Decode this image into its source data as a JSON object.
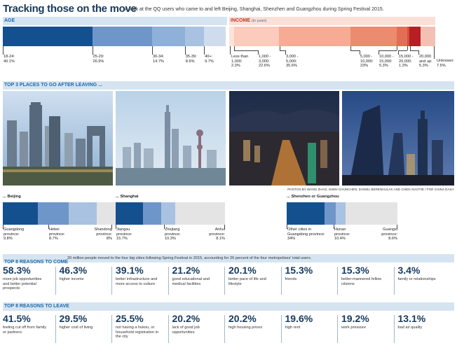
{
  "header": {
    "title": "Tracking those on the move",
    "subtitle": "A look at the QQ users who came to and left Beijing, Shanghai, Shenzhen and Guangzhou during Spring Festival 2015."
  },
  "colors": {
    "navy": "#17395e",
    "blue_dark": "#14508e",
    "blue_mid": "#4c7fba",
    "blue_light": "#8fb0d9",
    "blue_pale": "#d6e4f1",
    "red_dark": "#b01e25",
    "red_mid": "#e07a63",
    "red_light": "#fbd8cd"
  },
  "sections": {
    "age": "AGE",
    "income": "INCOME",
    "income_unit": "(in yuan)",
    "top3": "TOP 3 PLACES TO GO AFTER LEAVING ...",
    "reasons_come": "TOP 8 REASONS TO COME",
    "reasons_come_note": "20 million people moved to the four big cities following Spring Festival in 2015, accounting for 26 percent of the four metropolises' total users.",
    "reasons_leave": "TOP 8 REASONS TO LEAVE"
  },
  "photo_credit": "PHOTOS BY WANG ZHAO, SHEN CHUNCHEN, DANIEL BERENHULAK AND CHEN XIAOTIE / FOR CHINA DAILY",
  "photos": [
    "beijing-skyline-photo",
    "shanghai-skyline-photo",
    "shenzhen-night-photo",
    "guangzhou-night-photo"
  ],
  "chart_data": [
    {
      "type": "bar",
      "title": "AGE",
      "orientation": "stacked-horizontal",
      "categories": [
        "18-24:",
        "25-29:",
        "30-34:",
        "35-39:",
        "40+:"
      ],
      "values": [
        40.1,
        26.9,
        14.7,
        8.6,
        9.7
      ],
      "value_labels": [
        "40.1%",
        "26.9%",
        "14.7%",
        "8.6%",
        "9.7%"
      ],
      "unit": "%"
    },
    {
      "type": "bar",
      "title": "INCOME",
      "subtitle": "(in yuan)",
      "orientation": "stacked-horizontal",
      "categories": [
        "Less than 1,000:",
        "1,000 - 3,000:",
        "3,000 - 5,000:",
        "5,000 - 10,000:",
        "10,000 - 15,000:",
        "15,000 - 20,000:",
        "20,000 and up:",
        "Unknown:"
      ],
      "values": [
        2.3,
        22.6,
        35.6,
        23.0,
        5.3,
        1.3,
        5.3,
        7.5
      ],
      "value_labels": [
        "2.3%",
        "22.6%",
        "35.6%",
        "23%",
        "5.3%",
        "1.3%",
        "5.3%",
        "7.5%"
      ],
      "unit": "%"
    },
    {
      "type": "bar",
      "title": "... Beijing",
      "orientation": "stacked-horizontal",
      "categories": [
        "Guangdong province:",
        "Hebei province:",
        "Shandong province:"
      ],
      "values": [
        9.8,
        8.7,
        8.0
      ],
      "value_labels": [
        "9.8%",
        "8.7%",
        "8%"
      ],
      "unit": "%"
    },
    {
      "type": "bar",
      "title": "... Shanghai",
      "orientation": "stacked-horizontal",
      "categories": [
        "Jiangsu province:",
        "Zhejiang province:",
        "Anhui province:"
      ],
      "values": [
        15.7,
        10.3,
        8.1
      ],
      "value_labels": [
        "15.7%",
        "10.3%",
        "8.1%"
      ],
      "unit": "%"
    },
    {
      "type": "bar",
      "title": "... Shenzhen or Guangzhou",
      "orientation": "stacked-horizontal",
      "categories": [
        "Other cities in Guangdong province:",
        "Hunan province:",
        "Guangxi province:"
      ],
      "values": [
        34.0,
        10.4,
        8.6
      ],
      "value_labels": [
        "34%",
        "10.4%",
        "8.6%"
      ],
      "unit": "%"
    },
    {
      "type": "table",
      "title": "TOP 8 REASONS TO COME",
      "categories": [
        "more job opportunities and better potential prospects",
        "higher income",
        "better infrastructure and more access to culture",
        "good educational and medical facilities",
        "better pace of life and lifestyle",
        "friends",
        "better-mannered fellow citizens",
        "family or relationships"
      ],
      "values": [
        58.3,
        46.3,
        39.1,
        21.2,
        20.1,
        15.3,
        15.3,
        3.4
      ],
      "value_labels": [
        "58.3%",
        "46.3%",
        "39.1%",
        "21.2%",
        "20.1%",
        "15.3%",
        "15.3%",
        "3.4%"
      ]
    },
    {
      "type": "table",
      "title": "TOP 8 REASONS TO LEAVE",
      "categories": [
        "feeling cut off from family or partners",
        "higher cost of living",
        "not having a hukou, or household registration in the city",
        "lack of good job opportunities",
        "high housing prices",
        "high rent",
        "work pressure",
        "bad air quality"
      ],
      "values": [
        41.5,
        29.5,
        25.5,
        20.2,
        20.2,
        19.6,
        19.2,
        13.1
      ],
      "value_labels": [
        "41.5%",
        "29.5%",
        "25.5%",
        "20.2%",
        "20.2%",
        "19.6%",
        "19.2%",
        "13.1%"
      ]
    }
  ]
}
